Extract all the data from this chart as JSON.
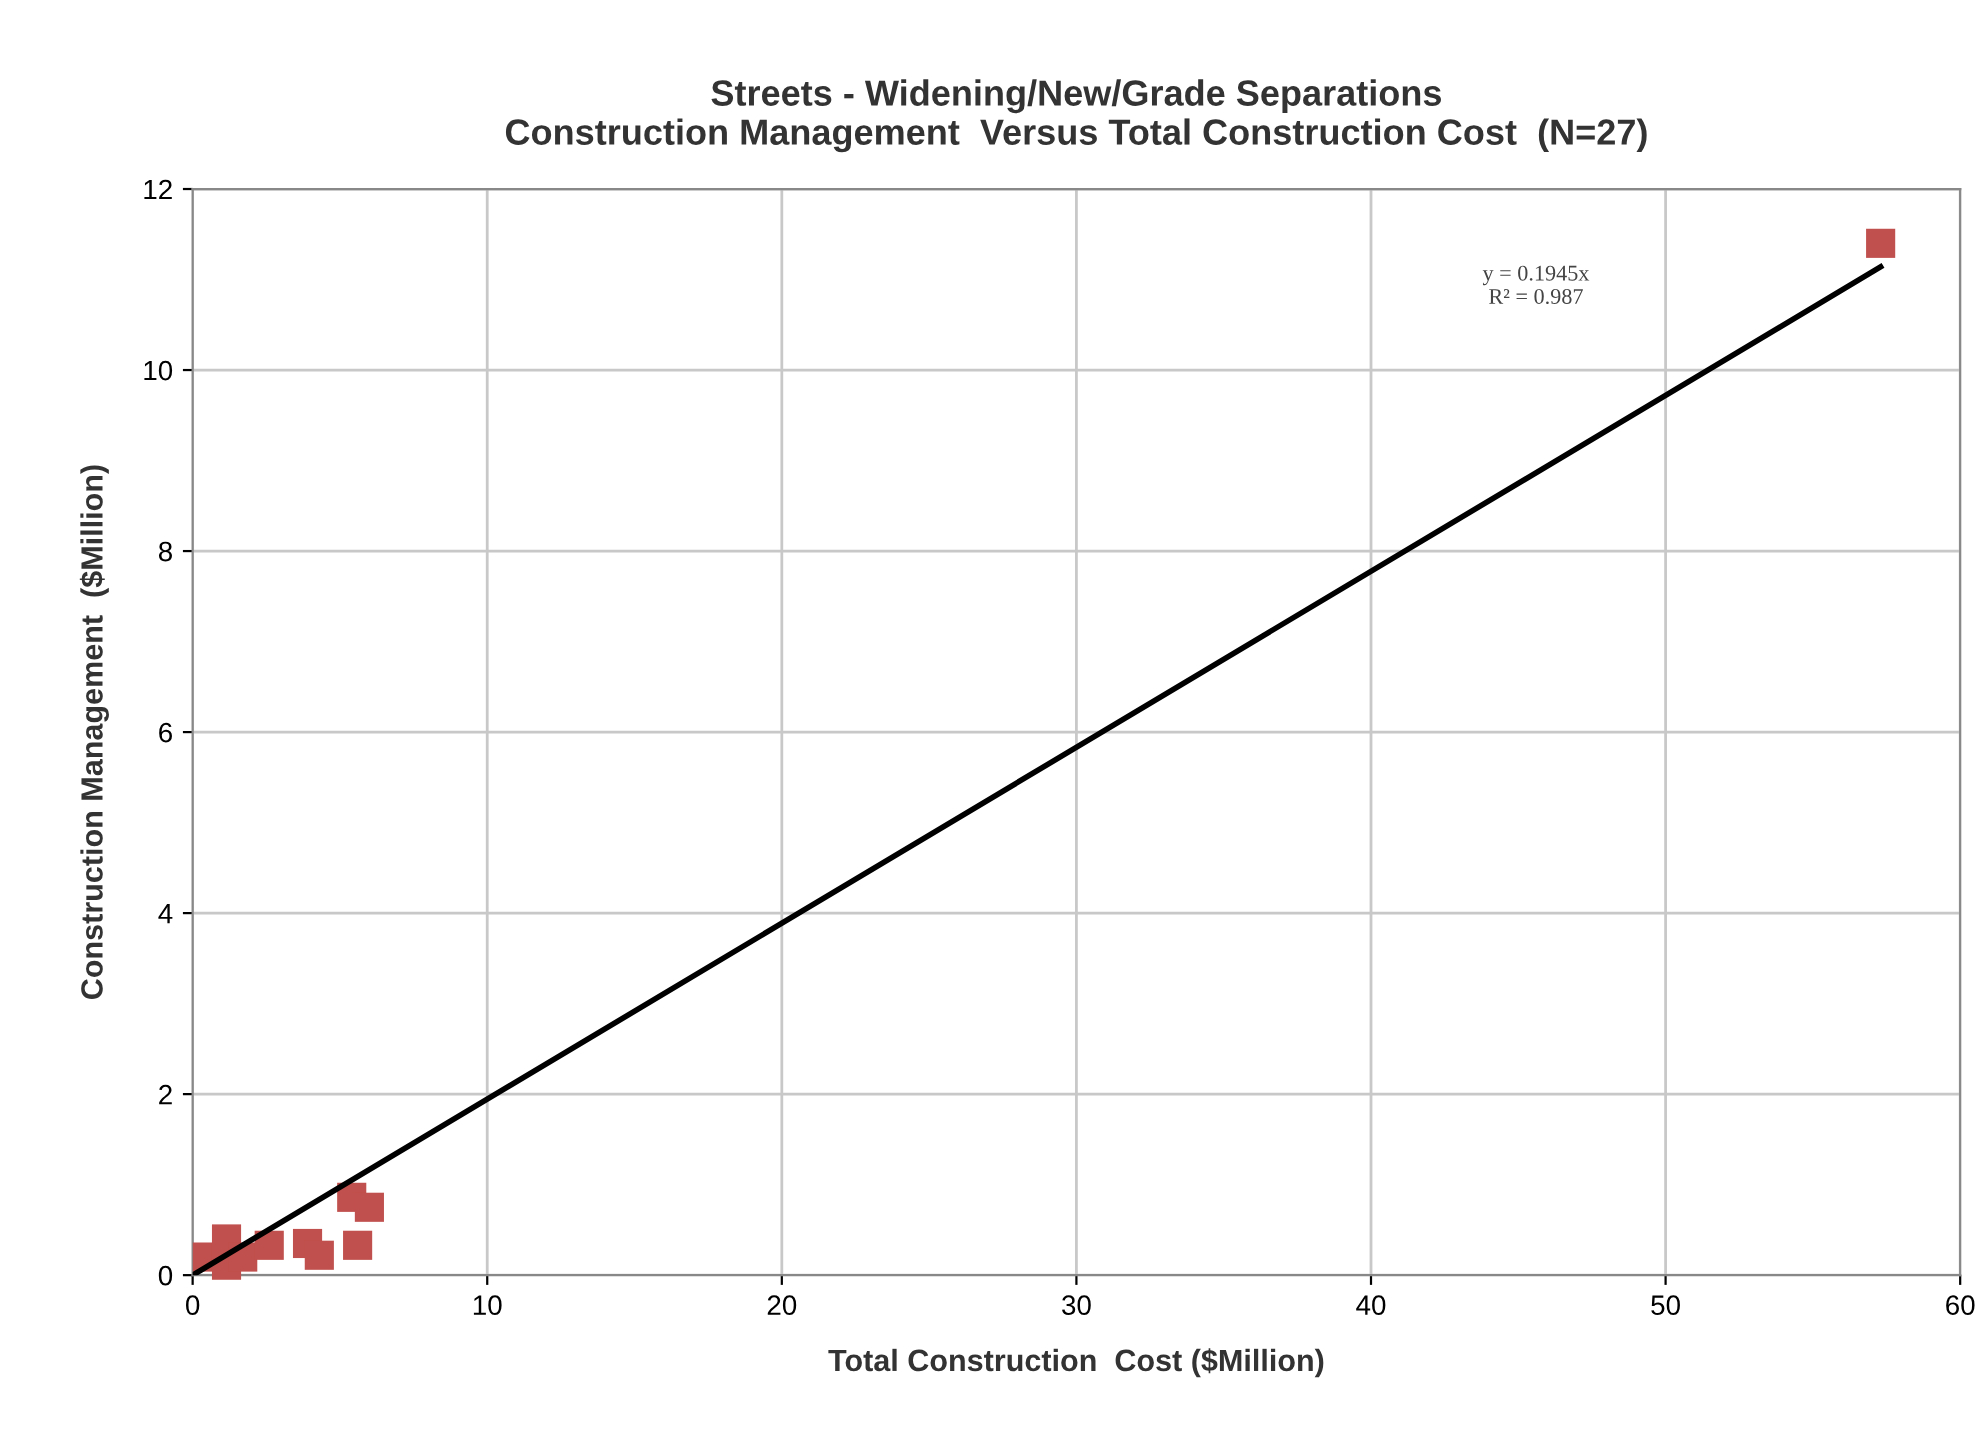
{
  "chart_data": {
    "type": "scatter",
    "title": "Streets - Widening/New/Grade Separations\nConstruction Management  Versus Total Construction Cost  (N=27)",
    "xlabel": "Total Construction  Cost ($Million)",
    "ylabel": "Construction Management  ($Million)",
    "xlim": [
      0,
      60
    ],
    "xticks": [
      0,
      10,
      20,
      30,
      40,
      50,
      60
    ],
    "ylim": [
      0,
      12
    ],
    "yticks": [
      0,
      2,
      4,
      6,
      8,
      10,
      12
    ],
    "grid": true,
    "legend": false,
    "annotations": [
      "y = 0.1945x\nR² = 0.987"
    ],
    "series": [
      {
        "color": "#c0504d",
        "marker": "square",
        "x": [
          0.5,
          1.15,
          1.15,
          1.7,
          2.3,
          2.6,
          3.9,
          4.3,
          5.4,
          5.6,
          6.0,
          57.3
        ],
        "values": [
          0.2,
          0.4,
          0.11,
          0.2,
          null,
          0.33,
          0.35,
          0.22,
          0.86,
          0.33,
          0.75,
          11.4
        ]
      },
      {
        "type": "line",
        "color": "#000000",
        "marker": "none",
        "line_style": "solid",
        "x": [
          0,
          57.3
        ],
        "values": [
          0,
          11.14
        ]
      }
    ]
  }
}
